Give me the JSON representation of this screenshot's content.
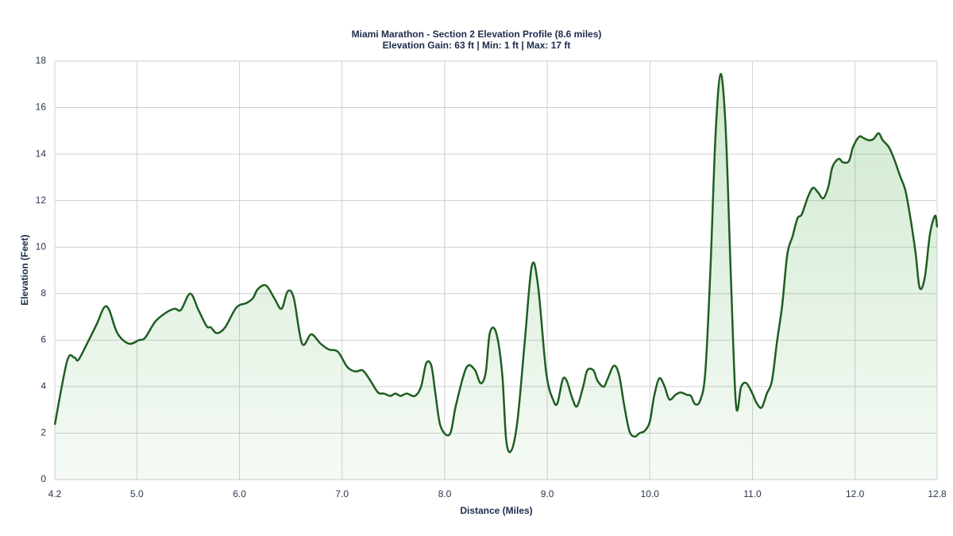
{
  "chart_data": {
    "type": "area",
    "title": "Miami Marathon - Section 2 Elevation Profile (8.6 miles)",
    "subtitle": "Elevation Gain: 63 ft | Min: 1 ft | Max: 17 ft",
    "x_label": "Distance (Miles)",
    "y_label": "Elevation (Feet)",
    "color": "#1f5e22",
    "fill_color": "#5fb35f",
    "grid": true,
    "xlim": [
      4.2,
      12.8
    ],
    "xticks": [
      4.2,
      {
        "value": 5,
        "label": "5.0"
      },
      {
        "value": 6,
        "label": "6.0"
      },
      {
        "value": 7,
        "label": "7.0"
      },
      {
        "value": 8,
        "label": "8.0"
      },
      {
        "value": 9,
        "label": "9.0"
      },
      {
        "value": 10,
        "label": "10.0"
      },
      {
        "value": 11,
        "label": "11.0"
      },
      {
        "value": 12,
        "label": "12.0"
      },
      12.8
    ],
    "ylim": [
      0,
      18
    ],
    "yticks": [
      0,
      2,
      4,
      6,
      8,
      10,
      12,
      14,
      16,
      18
    ],
    "x": [
      4.2,
      4.32,
      4.39,
      4.43,
      4.52,
      4.61,
      4.68,
      4.73,
      4.81,
      4.92,
      5.02,
      5.08,
      5.18,
      5.29,
      5.37,
      5.43,
      5.52,
      5.6,
      5.68,
      5.72,
      5.78,
      5.86,
      5.97,
      6.07,
      6.13,
      6.18,
      6.26,
      6.34,
      6.41,
      6.47,
      6.53,
      6.61,
      6.7,
      6.79,
      6.87,
      6.96,
      7.05,
      7.13,
      7.2,
      7.27,
      7.35,
      7.41,
      7.47,
      7.52,
      7.57,
      7.63,
      7.71,
      7.77,
      7.82,
      7.87,
      7.91,
      7.96,
      8.05,
      8.11,
      8.21,
      8.29,
      8.35,
      8.4,
      8.44,
      8.5,
      8.56,
      8.6,
      8.65,
      8.71,
      8.78,
      8.85,
      8.91,
      8.99,
      9.06,
      9.1,
      9.15,
      9.19,
      9.24,
      9.29,
      9.35,
      9.39,
      9.45,
      9.49,
      9.55,
      9.59,
      9.65,
      9.7,
      9.75,
      9.8,
      9.85,
      9.9,
      9.95,
      10.0,
      10.04,
      10.09,
      10.14,
      10.19,
      10.25,
      10.3,
      10.36,
      10.4,
      10.44,
      10.49,
      10.54,
      10.59,
      10.64,
      10.69,
      10.74,
      10.79,
      10.84,
      10.89,
      10.94,
      11.0,
      11.04,
      11.09,
      11.14,
      11.19,
      11.24,
      11.29,
      11.34,
      11.39,
      11.44,
      11.48,
      11.54,
      11.59,
      11.64,
      11.69,
      11.74,
      11.78,
      11.84,
      11.88,
      11.94,
      11.98,
      12.04,
      12.08,
      12.13,
      12.18,
      12.23,
      12.27,
      12.33,
      12.38,
      12.44,
      12.49,
      12.54,
      12.59,
      12.63,
      12.68,
      12.73,
      12.78,
      12.8
    ],
    "values": [
      2.36,
      5.1,
      5.25,
      5.15,
      5.9,
      6.7,
      7.4,
      7.3,
      6.3,
      5.85,
      6.0,
      6.1,
      6.8,
      7.2,
      7.35,
      7.3,
      8.0,
      7.3,
      6.6,
      6.55,
      6.3,
      6.55,
      7.4,
      7.6,
      7.8,
      8.2,
      8.35,
      7.8,
      7.35,
      8.1,
      7.8,
      5.85,
      6.25,
      5.85,
      5.6,
      5.5,
      4.85,
      4.65,
      4.7,
      4.3,
      3.75,
      3.7,
      3.6,
      3.7,
      3.6,
      3.7,
      3.6,
      4.0,
      5.0,
      4.9,
      3.7,
      2.3,
      1.95,
      3.2,
      4.8,
      4.75,
      4.15,
      4.6,
      6.3,
      6.35,
      4.6,
      1.7,
      1.25,
      2.55,
      5.9,
      9.2,
      8.35,
      4.6,
      3.4,
      3.3,
      4.3,
      4.25,
      3.55,
      3.15,
      4.0,
      4.7,
      4.7,
      4.25,
      4.0,
      4.35,
      4.9,
      4.5,
      3.2,
      2.1,
      1.85,
      2.0,
      2.1,
      2.5,
      3.55,
      4.35,
      4.05,
      3.45,
      3.65,
      3.75,
      3.65,
      3.6,
      3.25,
      3.4,
      4.6,
      9.0,
      14.8,
      17.45,
      15.0,
      8.7,
      3.2,
      4.0,
      4.15,
      3.7,
      3.3,
      3.1,
      3.7,
      4.25,
      5.95,
      7.5,
      9.7,
      10.45,
      11.25,
      11.4,
      12.15,
      12.55,
      12.35,
      12.1,
      12.6,
      13.45,
      13.8,
      13.65,
      13.7,
      14.3,
      14.75,
      14.7,
      14.6,
      14.65,
      14.9,
      14.6,
      14.3,
      13.8,
      13.05,
      12.45,
      11.25,
      9.75,
      8.25,
      8.7,
      10.55,
      11.35,
      10.85
    ]
  }
}
